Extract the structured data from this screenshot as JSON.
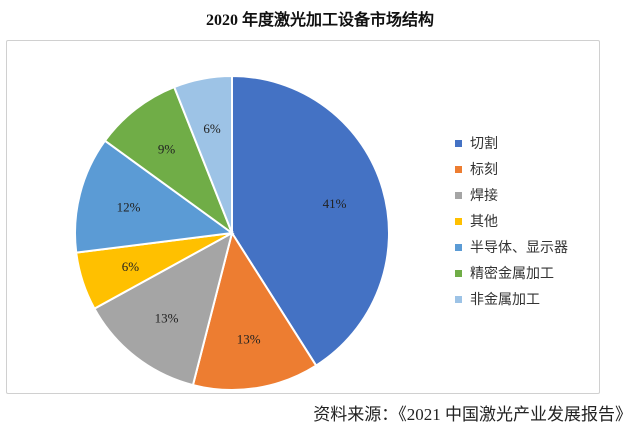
{
  "chart_data": {
    "type": "pie",
    "title": "2020 年度激光加工设备市场结构",
    "categories": [
      "切割",
      "标刻",
      "焊接",
      "其他",
      "半导体、显示器",
      "精密金属加工",
      "非金属加工"
    ],
    "values": [
      41,
      13,
      13,
      6,
      12,
      9,
      6
    ],
    "labels": [
      "41%",
      "13%",
      "13%",
      "6%",
      "12%",
      "9%",
      "6%"
    ],
    "colors": [
      "#4472c4",
      "#ed7d31",
      "#a5a5a5",
      "#ffc000",
      "#5b9bd5",
      "#70ad47",
      "#9dc3e6"
    ],
    "legend": "right",
    "start": "12 o'clock, clockwise"
  },
  "source": "资料来源：《2021 中国激光产业发展报告》"
}
